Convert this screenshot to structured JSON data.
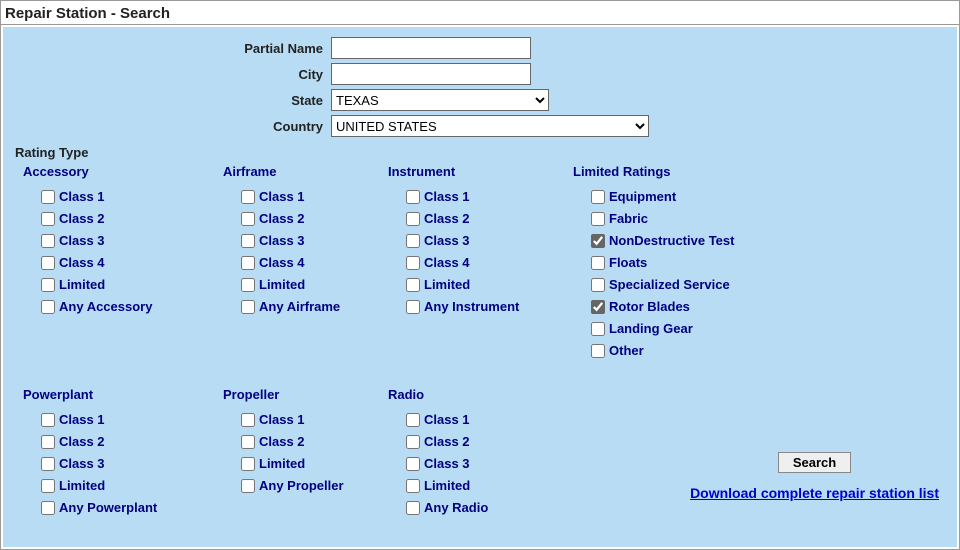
{
  "title": "Repair Station - Search",
  "form": {
    "partialName": {
      "label": "Partial Name",
      "value": ""
    },
    "city": {
      "label": "City",
      "value": ""
    },
    "state": {
      "label": "State",
      "value": "TEXAS"
    },
    "country": {
      "label": "Country",
      "value": "UNITED STATES"
    }
  },
  "ratingTypeLabel": "Rating Type",
  "groups": {
    "accessory": {
      "title": "Accessory",
      "items": [
        {
          "label": "Class 1",
          "checked": false
        },
        {
          "label": "Class 2",
          "checked": false
        },
        {
          "label": "Class 3",
          "checked": false
        },
        {
          "label": "Class 4",
          "checked": false
        },
        {
          "label": "Limited",
          "checked": false
        },
        {
          "label": "Any Accessory",
          "checked": false
        }
      ]
    },
    "airframe": {
      "title": "Airframe",
      "items": [
        {
          "label": "Class 1",
          "checked": false
        },
        {
          "label": "Class 2",
          "checked": false
        },
        {
          "label": "Class 3",
          "checked": false
        },
        {
          "label": "Class 4",
          "checked": false
        },
        {
          "label": "Limited",
          "checked": false
        },
        {
          "label": "Any Airframe",
          "checked": false
        }
      ]
    },
    "instrument": {
      "title": "Instrument",
      "items": [
        {
          "label": "Class 1",
          "checked": false
        },
        {
          "label": "Class 2",
          "checked": false
        },
        {
          "label": "Class 3",
          "checked": false
        },
        {
          "label": "Class 4",
          "checked": false
        },
        {
          "label": "Limited",
          "checked": false
        },
        {
          "label": "Any Instrument",
          "checked": false
        }
      ]
    },
    "limited": {
      "title": "Limited Ratings",
      "items": [
        {
          "label": "Equipment",
          "checked": false
        },
        {
          "label": "Fabric",
          "checked": false
        },
        {
          "label": "NonDestructive Test",
          "checked": true
        },
        {
          "label": "Floats",
          "checked": false
        },
        {
          "label": "Specialized Service",
          "checked": false
        },
        {
          "label": "Rotor Blades",
          "checked": true
        },
        {
          "label": "Landing Gear",
          "checked": false
        },
        {
          "label": "Other",
          "checked": false
        }
      ]
    },
    "powerplant": {
      "title": "Powerplant",
      "items": [
        {
          "label": "Class 1",
          "checked": false
        },
        {
          "label": "Class 2",
          "checked": false
        },
        {
          "label": "Class 3",
          "checked": false
        },
        {
          "label": "Limited",
          "checked": false
        },
        {
          "label": "Any Powerplant",
          "checked": false
        }
      ]
    },
    "propeller": {
      "title": "Propeller",
      "items": [
        {
          "label": "Class 1",
          "checked": false
        },
        {
          "label": "Class 2",
          "checked": false
        },
        {
          "label": "Limited",
          "checked": false
        },
        {
          "label": "Any Propeller",
          "checked": false
        }
      ]
    },
    "radio": {
      "title": "Radio",
      "items": [
        {
          "label": "Class 1",
          "checked": false
        },
        {
          "label": "Class 2",
          "checked": false
        },
        {
          "label": "Class 3",
          "checked": false
        },
        {
          "label": "Limited",
          "checked": false
        },
        {
          "label": "Any Radio",
          "checked": false
        }
      ]
    }
  },
  "searchButton": "Search",
  "downloadLink": "Download complete repair station list",
  "colors": {
    "panelBg": "#b7dcf4",
    "linkColor": "#000080",
    "dlLinkColor": "#0000cc"
  }
}
